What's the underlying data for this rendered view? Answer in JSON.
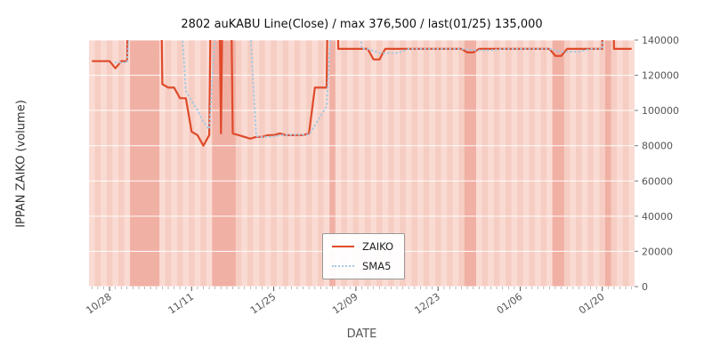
{
  "title": "2802 auKABU Line(Close) / max 376,500 / last(01/25) 135,000",
  "x_axis": {
    "label": "DATE",
    "tick_labels": [
      "10/28",
      "11/11",
      "11/25",
      "12/09",
      "12/23",
      "01/06",
      "01/20"
    ]
  },
  "y_axis": {
    "label": "IPPAN ZAIKO (volume)",
    "side": "right",
    "ticks": [
      0,
      20000,
      40000,
      60000,
      80000,
      100000,
      120000,
      140000
    ]
  },
  "legend": {
    "position": "lower center",
    "entries": [
      {
        "label": "ZAIKO",
        "color": "#df4a2a",
        "style": "solid"
      },
      {
        "label": "SMA5",
        "color": "#a6c9e2",
        "style": "dotted"
      }
    ]
  },
  "colors": {
    "figure_bg": "#ffffff",
    "plot_bg": "#fadbd3",
    "stripe": "#f6cdc2",
    "band": "#f1b0a4",
    "grid": "#ffffff",
    "zaiko": "#df4a2a",
    "sma5": "#a6c9e2",
    "tick_text": "#555555"
  },
  "chart_data": {
    "type": "line",
    "title": "2802 auKABU Line(Close) / max 376,500 / last(01/25) 135,000",
    "xlabel": "DATE",
    "ylabel": "IPPAN ZAIKO (volume)",
    "ylim": [
      0,
      140000
    ],
    "clipped_above": 140000,
    "max_value": 376500,
    "last": {
      "date": "01/25",
      "value": 135000
    },
    "grid": "horizontal white lines",
    "x": [
      "10/25",
      "10/26",
      "10/27",
      "10/28",
      "10/29",
      "10/30",
      "10/31",
      "11/01",
      "11/02",
      "11/03",
      "11/04",
      "11/05",
      "11/06",
      "11/07",
      "11/08",
      "11/09",
      "11/10",
      "11/11",
      "11/12",
      "11/13",
      "11/14",
      "11/15",
      "11/16",
      "11/17",
      "11/18",
      "11/19",
      "11/20",
      "11/21",
      "11/22",
      "11/23",
      "11/24",
      "11/25",
      "11/26",
      "11/27",
      "11/28",
      "11/29",
      "11/30",
      "12/01",
      "12/02",
      "12/03",
      "12/04",
      "12/05",
      "12/06",
      "12/07",
      "12/08",
      "12/09",
      "12/10",
      "12/11",
      "12/12",
      "12/13",
      "12/14",
      "12/15",
      "12/16",
      "12/17",
      "12/18",
      "12/19",
      "12/20",
      "12/21",
      "12/22",
      "12/23",
      "12/24",
      "12/25",
      "12/26",
      "12/27",
      "12/28",
      "12/29",
      "12/30",
      "12/31",
      "01/01",
      "01/02",
      "01/03",
      "01/04",
      "01/05",
      "01/06",
      "01/07",
      "01/08",
      "01/09",
      "01/10",
      "01/11",
      "01/12",
      "01/13",
      "01/14",
      "01/15",
      "01/16",
      "01/17",
      "01/18",
      "01/19",
      "01/20",
      "01/21",
      "01/22",
      "01/23",
      "01/24",
      "01/25"
    ],
    "series": [
      {
        "name": "ZAIKO",
        "values": [
          128000,
          128000,
          128000,
          128000,
          124000,
          128000,
          128000,
          376500,
          376500,
          376500,
          376500,
          376500,
          115000,
          113000,
          113000,
          107000,
          107000,
          88000,
          86000,
          80000,
          86000,
          376500,
          87000,
          376500,
          87000,
          86000,
          85000,
          84000,
          85000,
          85000,
          86000,
          86000,
          87000,
          86000,
          86000,
          86000,
          86000,
          87000,
          113000,
          113000,
          113000,
          376500,
          135000,
          135000,
          135000,
          135000,
          135000,
          135000,
          129000,
          129000,
          135000,
          135000,
          135000,
          135000,
          135000,
          135000,
          135000,
          135000,
          135000,
          135000,
          135000,
          135000,
          135000,
          135000,
          133000,
          133000,
          135000,
          135000,
          135000,
          135000,
          135000,
          135000,
          135000,
          135000,
          135000,
          135000,
          135000,
          135000,
          135000,
          131000,
          131000,
          135000,
          135000,
          135000,
          135000,
          135000,
          135000,
          135000,
          376500,
          135000,
          135000,
          135000,
          135000
        ]
      },
      {
        "name": "SMA5",
        "derived": "5-day simple moving average of ZAIKO (computed from ZAIKO values)"
      }
    ],
    "highlight_bands": [
      [
        "11/01",
        "11/05"
      ],
      [
        "11/15",
        "11/18"
      ],
      [
        "12/05",
        "12/05"
      ],
      [
        "12/28",
        "12/29"
      ],
      [
        "01/12",
        "01/13"
      ],
      [
        "01/21",
        "01/21"
      ]
    ],
    "background_pattern": "alternate-day vertical stripes on pink plot background"
  }
}
